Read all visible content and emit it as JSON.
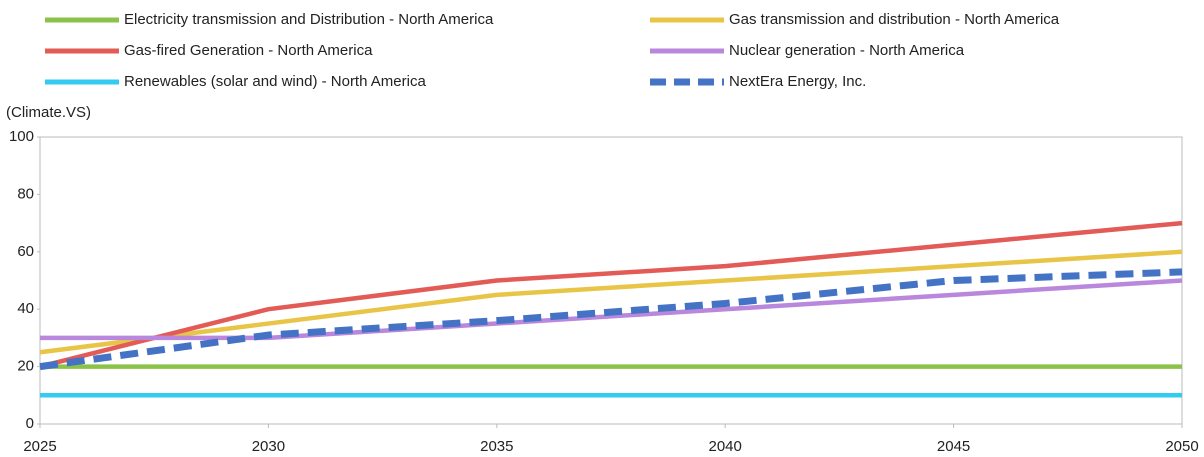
{
  "chart_data": {
    "type": "line",
    "y_label": "(Climate.VS)",
    "x": [
      2025,
      2030,
      2035,
      2040,
      2045,
      2050
    ],
    "xlim": [
      2025,
      2050
    ],
    "xticks": [
      2025,
      2030,
      2035,
      2040,
      2045,
      2050
    ],
    "ylim": [
      0,
      100
    ],
    "yticks": [
      0,
      20,
      40,
      60,
      80,
      100
    ],
    "grid": false,
    "series": [
      {
        "name": "Electricity transmission and Distribution - North America",
        "color": "#8bc34a",
        "values": [
          20,
          20,
          20,
          20,
          20,
          20
        ]
      },
      {
        "name": "Gas transmission and distribution - North America",
        "color": "#e8c547",
        "values": [
          25,
          35,
          45,
          50,
          55,
          60
        ]
      },
      {
        "name": "Gas-fired Generation - North America",
        "color": "#e35b56",
        "values": [
          20,
          40,
          50,
          55,
          62.5,
          70
        ]
      },
      {
        "name": "Nuclear generation - North America",
        "color": "#b988dd",
        "values": [
          30,
          30,
          35,
          40,
          45,
          50
        ]
      },
      {
        "name": "Renewables (solar and wind) - North America",
        "color": "#33ccf0",
        "values": [
          10,
          10,
          10,
          10,
          10,
          10
        ]
      },
      {
        "name": "NextEra Energy, Inc.",
        "color": "#4472c4",
        "dashed": true,
        "values": [
          20,
          31,
          36,
          42,
          50,
          53
        ]
      }
    ]
  }
}
